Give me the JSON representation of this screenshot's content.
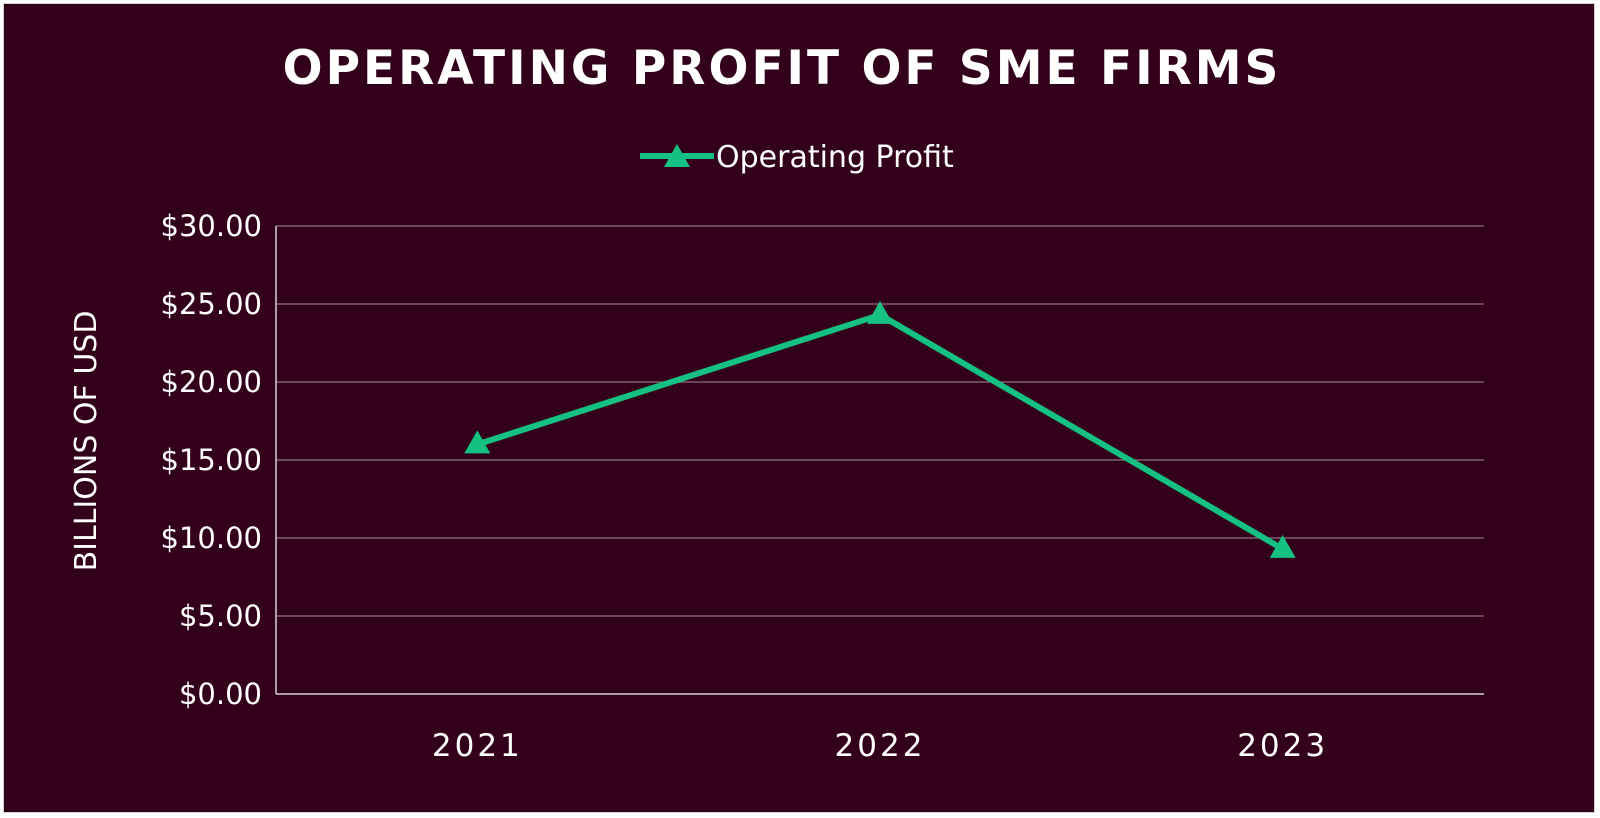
{
  "colors": {
    "background": "#33001b",
    "series": "#14c183",
    "grid": "#8a7480",
    "text": "#ffffff"
  },
  "chart_data": {
    "type": "line",
    "title": "OPERATING PROFIT OF SME FIRMS",
    "xlabel": "",
    "ylabel": "BILLIONS OF USD",
    "categories": [
      "2021",
      "2022",
      "2023"
    ],
    "series": [
      {
        "name": "Operating Profit",
        "marker": "triangle",
        "values": [
          16.0,
          24.3,
          9.3
        ]
      }
    ],
    "ylim": [
      0,
      30
    ],
    "yticks": [
      0,
      5,
      10,
      15,
      20,
      25,
      30
    ],
    "ytick_labels": [
      "$0.00",
      "$5.00",
      "$10.00",
      "$15.00",
      "$20.00",
      "$25.00",
      "$30.00"
    ],
    "grid": true,
    "legend_position": "top-center"
  }
}
